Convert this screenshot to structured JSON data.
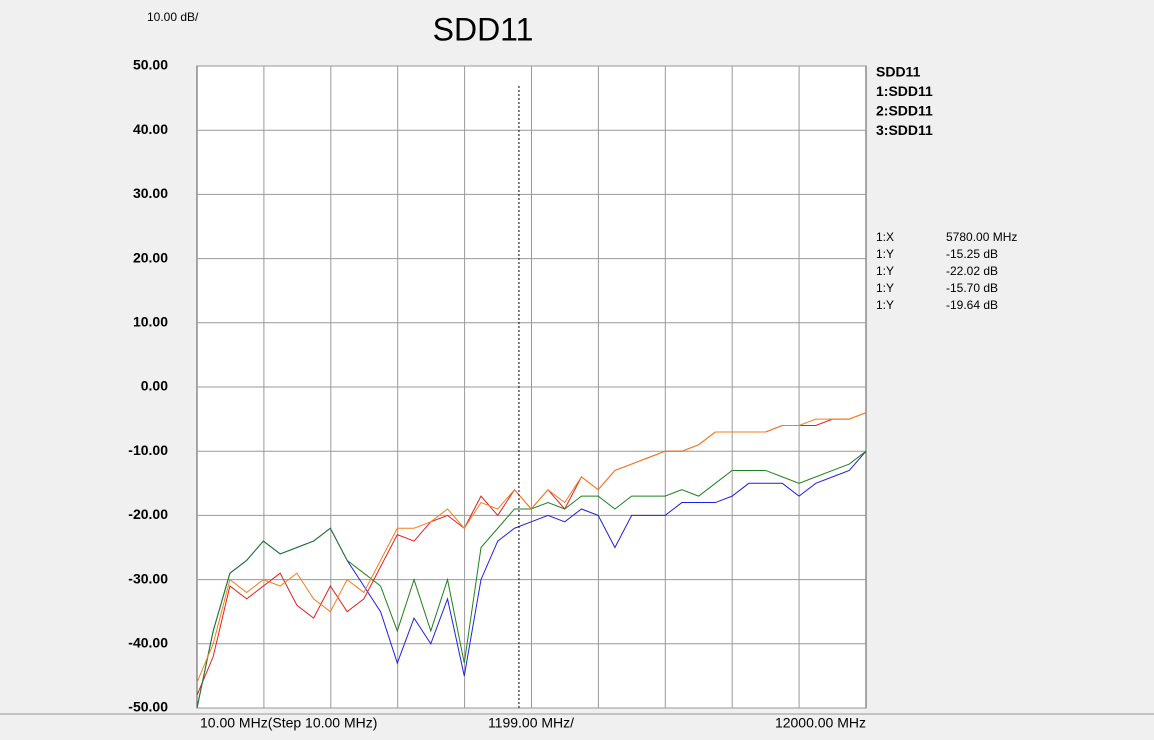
{
  "chart_data": {
    "type": "line",
    "title": "SDD11",
    "scale_label": "10.00 dB/",
    "xlim": [
      10,
      12000
    ],
    "xgrid": [
      1209,
      2408,
      3607,
      4806,
      6005,
      7204,
      8403,
      9602,
      10801
    ],
    "x_axis_labels": {
      "start": "10.00 MHz(Step 10.00 MHz)",
      "per_division": "1199.00 MHz/",
      "stop": "12000.00 MHz"
    },
    "ylim": [
      -50,
      50
    ],
    "yticks": [
      {
        "value": 50,
        "label": "50.00"
      },
      {
        "value": 40,
        "label": "40.00"
      },
      {
        "value": 30,
        "label": "30.00"
      },
      {
        "value": 20,
        "label": "20.00"
      },
      {
        "value": 10,
        "label": "10.00"
      },
      {
        "value": 0,
        "label": "0.00"
      },
      {
        "value": -10,
        "label": "-10.00"
      },
      {
        "value": -20,
        "label": "-20.00"
      },
      {
        "value": -30,
        "label": "-30.00"
      },
      {
        "value": -40,
        "label": "-40.00"
      },
      {
        "value": -50,
        "label": "-50.00"
      }
    ],
    "grid": true,
    "x": [
      10,
      300,
      600,
      900,
      1200,
      1500,
      1800,
      2100,
      2400,
      2700,
      3000,
      3300,
      3600,
      3900,
      4200,
      4500,
      4800,
      5100,
      5400,
      5700,
      6000,
      6300,
      6600,
      6900,
      7200,
      7500,
      7800,
      8100,
      8400,
      8700,
      9000,
      9300,
      9600,
      9900,
      10200,
      10500,
      10800,
      11100,
      11400,
      11700,
      12000
    ],
    "series": [
      {
        "name": "SDD11",
        "color": "#2020e0",
        "values": [
          -50,
          -38,
          -29,
          -27,
          -24,
          -26,
          -25,
          -24,
          -22,
          -27,
          -31,
          -35,
          -43,
          -36,
          -40,
          -33,
          -45,
          -30,
          -24,
          -22,
          -21,
          -20,
          -21,
          -19,
          -20,
          -25,
          -20,
          -20,
          -20,
          -18,
          -18,
          -18,
          -17,
          -15,
          -15,
          -15,
          -17,
          -15,
          -14,
          -13,
          -10
        ]
      },
      {
        "name": "1:SDD11",
        "color": "#e02020",
        "values": [
          -48,
          -42,
          -31,
          -33,
          -31,
          -29,
          -34,
          -36,
          -31,
          -35,
          -33,
          -28,
          -23,
          -24,
          -21,
          -20,
          -22,
          -17,
          -20,
          -16,
          -19,
          -16,
          -19,
          -14,
          -16,
          -13,
          -12,
          -11,
          -10,
          -10,
          -9,
          -7,
          -7,
          -7,
          -7,
          -6,
          -6,
          -6,
          -5,
          -5,
          -4
        ]
      },
      {
        "name": "2:SDD11",
        "color": "#208020",
        "values": [
          -50,
          -38,
          -29,
          -27,
          -24,
          -26,
          -25,
          -24,
          -22,
          -27,
          -29,
          -31,
          -38,
          -30,
          -38,
          -30,
          -43,
          -25,
          -22,
          -19,
          -19,
          -18,
          -19,
          -17,
          -17,
          -19,
          -17,
          -17,
          -17,
          -16,
          -17,
          -15,
          -13,
          -13,
          -13,
          -14,
          -15,
          -14,
          -13,
          -12,
          -10
        ]
      },
      {
        "name": "3:SDD11",
        "color": "#f08020",
        "values": [
          -46,
          -40,
          -30,
          -32,
          -30,
          -31,
          -29,
          -33,
          -35,
          -30,
          -32,
          -27,
          -22,
          -22,
          -21,
          -19,
          -22,
          -18,
          -19,
          -16,
          -19,
          -16,
          -18,
          -14,
          -16,
          -13,
          -12,
          -11,
          -10,
          -10,
          -9,
          -7,
          -7,
          -7,
          -7,
          -6,
          -6,
          -5,
          -5,
          -5,
          -4
        ]
      }
    ],
    "marker": {
      "x": 5780,
      "readouts": [
        {
          "label": "1:X",
          "value": "5780.00 MHz",
          "color": "#a04848"
        },
        {
          "label": "1:Y",
          "value": "-15.25 dB",
          "color": "#f08020"
        },
        {
          "label": "1:Y",
          "value": "-22.02 dB",
          "color": "#6010c0"
        },
        {
          "label": "1:Y",
          "value": "-15.70 dB",
          "color": "#e02020"
        },
        {
          "label": "1:Y",
          "value": "-19.64 dB",
          "color": "#606010"
        }
      ]
    }
  }
}
